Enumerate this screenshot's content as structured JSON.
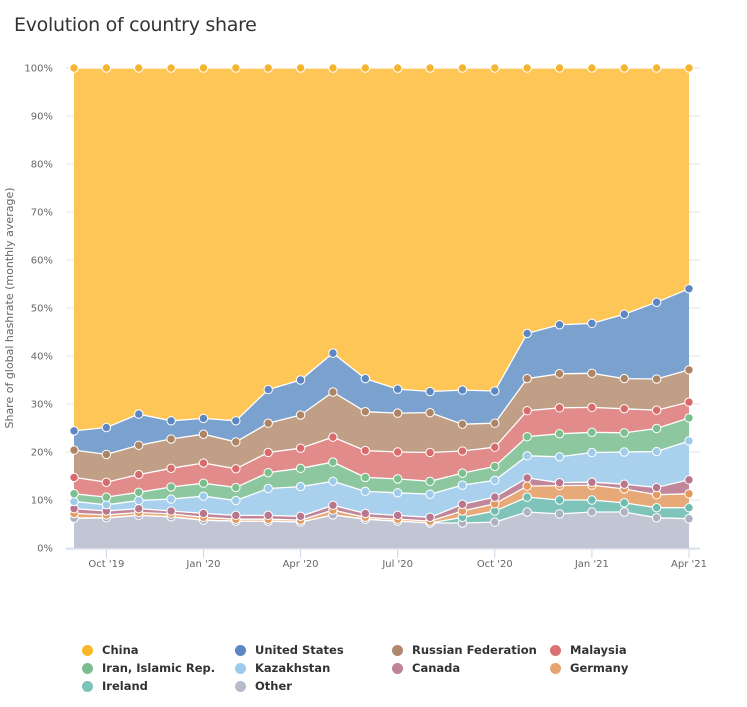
{
  "title": "Evolution of country share",
  "chart_data": {
    "type": "area",
    "stacked": true,
    "title": "Evolution of country share",
    "xlabel": "",
    "ylabel": "Share of global hashrate (monthly average)",
    "ylim": [
      0,
      100
    ],
    "y_ticks": [
      "0%",
      "10%",
      "20%",
      "30%",
      "40%",
      "50%",
      "60%",
      "70%",
      "80%",
      "90%",
      "100%"
    ],
    "x": [
      "Sep '19",
      "Oct '19",
      "Nov '19",
      "Dec '19",
      "Jan '20",
      "Feb '20",
      "Mar '20",
      "Apr '20",
      "May '20",
      "Jun '20",
      "Jul '20",
      "Aug '20",
      "Sep '20",
      "Oct '20",
      "Nov '20",
      "Dec '20",
      "Jan '21",
      "Feb '21",
      "Mar '21",
      "Apr '21"
    ],
    "x_tick_labels": [
      {
        "index": 1,
        "label": "Oct '19"
      },
      {
        "index": 4,
        "label": "Jan '20"
      },
      {
        "index": 7,
        "label": "Apr '20"
      },
      {
        "index": 10,
        "label": "Jul '20"
      },
      {
        "index": 13,
        "label": "Oct '20"
      },
      {
        "index": 16,
        "label": "Jan '21"
      },
      {
        "index": 19,
        "label": "Apr '21"
      }
    ],
    "grid": true,
    "legend_position": "bottom",
    "series": [
      {
        "name": "Other",
        "color": "#c2c5d3",
        "values": [
          6.2,
          6.3,
          6.8,
          6.5,
          5.8,
          5.6,
          5.6,
          5.4,
          6.9,
          6.0,
          5.6,
          5.2,
          5.2,
          5.4,
          7.5,
          7.1,
          7.5,
          7.5,
          6.3,
          6.1
        ]
      },
      {
        "name": "Ireland",
        "color": "#7fc4ba",
        "values": [
          0.0,
          0.0,
          0.0,
          0.0,
          0.0,
          0.0,
          0.0,
          0.0,
          0.0,
          0.0,
          0.0,
          0.0,
          1.2,
          2.3,
          3.1,
          2.9,
          2.5,
          1.9,
          2.1,
          2.3
        ]
      },
      {
        "name": "Germany",
        "color": "#e8a979",
        "values": [
          1.0,
          0.6,
          0.6,
          0.6,
          0.6,
          0.4,
          0.4,
          0.4,
          1.0,
          0.4,
          0.4,
          0.4,
          1.3,
          1.5,
          2.3,
          3.0,
          3.1,
          2.9,
          2.7,
          2.9
        ]
      },
      {
        "name": "Canada",
        "color": "#c0869a",
        "values": [
          1.0,
          0.8,
          0.8,
          0.6,
          0.8,
          0.8,
          0.8,
          0.8,
          1.0,
          0.8,
          0.8,
          0.8,
          1.4,
          1.4,
          1.7,
          0.6,
          0.6,
          1.0,
          1.5,
          2.9
        ]
      },
      {
        "name": "Kazakhstan",
        "color": "#a9d1ee",
        "values": [
          1.5,
          1.3,
          1.7,
          2.5,
          3.6,
          3.1,
          5.6,
          6.2,
          5.0,
          4.6,
          4.7,
          4.8,
          4.0,
          3.5,
          4.6,
          5.4,
          6.2,
          6.7,
          7.5,
          8.1
        ]
      },
      {
        "name": "Iran, Islamic Rep.",
        "color": "#8cc79f",
        "values": [
          1.6,
          1.6,
          1.7,
          2.5,
          2.7,
          2.7,
          3.3,
          3.8,
          4.0,
          2.9,
          2.9,
          2.7,
          2.5,
          2.9,
          4.0,
          4.8,
          4.2,
          4.0,
          4.8,
          4.8
        ]
      },
      {
        "name": "Malaysia",
        "color": "#e18b8b",
        "values": [
          3.4,
          3.1,
          3.7,
          3.9,
          4.2,
          3.9,
          4.2,
          4.2,
          5.2,
          5.6,
          5.6,
          6.0,
          4.6,
          4.0,
          5.4,
          5.4,
          5.2,
          5.0,
          3.8,
          3.3
        ]
      },
      {
        "name": "Russian Federation",
        "color": "#c09f86",
        "values": [
          5.7,
          5.8,
          6.1,
          6.1,
          6.0,
          5.6,
          6.1,
          6.9,
          9.4,
          8.1,
          8.1,
          8.3,
          5.6,
          5.0,
          6.7,
          7.1,
          7.1,
          6.3,
          6.5,
          6.7
        ]
      },
      {
        "name": "United States",
        "color": "#7ba2cf",
        "values": [
          4.0,
          5.6,
          6.5,
          3.8,
          3.3,
          4.4,
          7.0,
          7.3,
          8.1,
          6.9,
          5.0,
          4.4,
          7.1,
          6.7,
          9.4,
          10.2,
          10.4,
          13.4,
          16.0,
          16.9
        ]
      },
      {
        "name": "China",
        "color": "#fdc657",
        "values": [
          75.6,
          74.9,
          72.1,
          73.5,
          73.0,
          73.5,
          67.0,
          65.0,
          59.4,
          64.7,
          66.9,
          67.4,
          67.1,
          67.3,
          55.3,
          53.5,
          53.2,
          51.3,
          48.8,
          46.0
        ]
      }
    ]
  },
  "legend": [
    {
      "name": "China",
      "color": "#fbb72c"
    },
    {
      "name": "United States",
      "color": "#5b87c3"
    },
    {
      "name": "Russian Federation",
      "color": "#b08870"
    },
    {
      "name": "Malaysia",
      "color": "#d97373"
    },
    {
      "name": "Iran, Islamic Rep.",
      "color": "#7cbd8f"
    },
    {
      "name": "Kazakhstan",
      "color": "#9ccbeb"
    },
    {
      "name": "Canada",
      "color": "#bf8296"
    },
    {
      "name": "Germany",
      "color": "#e7a372"
    },
    {
      "name": "Ireland",
      "color": "#7cc3b8"
    },
    {
      "name": "Other",
      "color": "#b7bac8"
    }
  ],
  "marker_colors": {
    "China": "#f6b530",
    "United States": "#5d87c2",
    "Russian Federation": "#ae8464",
    "Malaysia": "#d86c6c",
    "Iran, Islamic Rep.": "#7abf8e",
    "Kazakhstan": "#9ecbea",
    "Canada": "#b8778c",
    "Germany": "#e49a5e",
    "Ireland": "#6dbcb0",
    "Other": "#aeb1c1"
  }
}
